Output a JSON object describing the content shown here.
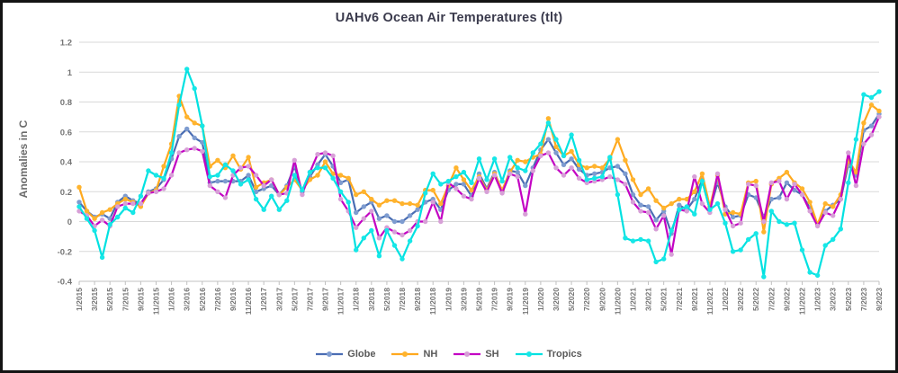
{
  "title": "UAHv6 Ocean Air Temperatures (tlt)",
  "y_axis_title": "Anomalies in C",
  "colors": {
    "background": "#ffffff",
    "frame_border": "#141414",
    "gridline": "#d9d9d9",
    "axis_line": "#c0c0c0",
    "tick_label": "#757575",
    "title_text": "#3b3b4d",
    "legend_text": "#595959"
  },
  "chart_data": {
    "type": "line",
    "title": "UAHv6 Ocean Air Temperatures (tlt)",
    "xlabel": "",
    "ylabel": "Anomalies in C",
    "ylim": [
      -0.4,
      1.2
    ],
    "ytick_step": 0.2,
    "ytick_labels": [
      "-0.4",
      "-0.2",
      "0",
      "0.2",
      "0.4",
      "0.6",
      "0.8",
      "1",
      "1.2"
    ],
    "grid": "horizontal",
    "legend_position": "bottom-center",
    "x_label_rotation": -90,
    "x_labels_shown_every": 2,
    "x": [
      "1/2015",
      "2/2015",
      "3/2015",
      "4/2015",
      "5/2015",
      "6/2015",
      "7/2015",
      "8/2015",
      "9/2015",
      "10/2015",
      "11/2015",
      "12/2015",
      "1/2016",
      "2/2016",
      "3/2016",
      "4/2016",
      "5/2016",
      "6/2016",
      "7/2016",
      "8/2016",
      "9/2016",
      "10/2016",
      "11/2016",
      "12/2016",
      "1/2017",
      "2/2017",
      "3/2017",
      "4/2017",
      "5/2017",
      "6/2017",
      "7/2017",
      "8/2017",
      "9/2017",
      "10/2017",
      "11/2017",
      "12/2017",
      "1/2018",
      "2/2018",
      "3/2018",
      "4/2018",
      "5/2018",
      "6/2018",
      "7/2018",
      "8/2018",
      "9/2018",
      "10/2018",
      "11/2018",
      "12/2018",
      "1/2019",
      "2/2019",
      "3/2019",
      "4/2019",
      "5/2019",
      "6/2019",
      "7/2019",
      "8/2019",
      "9/2019",
      "10/2019",
      "11/2019",
      "12/2019",
      "1/2020",
      "2/2020",
      "3/2020",
      "4/2020",
      "5/2020",
      "6/2020",
      "7/2020",
      "8/2020",
      "9/2020",
      "10/2020",
      "11/2020",
      "12/2020",
      "1/2021",
      "2/2021",
      "3/2021",
      "4/2021",
      "5/2021",
      "6/2021",
      "7/2021",
      "8/2021",
      "9/2021",
      "10/2021",
      "11/2021",
      "12/2021",
      "1/2022",
      "2/2022",
      "3/2022",
      "4/2022",
      "5/2022",
      "6/2022",
      "7/2022",
      "8/2022",
      "9/2022",
      "10/2022",
      "11/2022",
      "12/2022",
      "1/2023",
      "2/2023",
      "3/2023",
      "4/2023",
      "5/2023",
      "6/2023",
      "7/2023",
      "8/2023",
      "9/2023"
    ],
    "series": [
      {
        "name": "Globe",
        "color": "#4a6db3",
        "marker_color": "#7e9cd0",
        "values": [
          0.13,
          0.07,
          0.03,
          0.05,
          0.02,
          0.13,
          0.17,
          0.14,
          0.12,
          0.2,
          0.22,
          0.28,
          0.42,
          0.57,
          0.62,
          0.56,
          0.53,
          0.26,
          0.27,
          0.27,
          0.27,
          0.27,
          0.31,
          0.2,
          0.22,
          0.24,
          0.18,
          0.24,
          0.37,
          0.2,
          0.3,
          0.38,
          0.45,
          0.37,
          0.26,
          0.28,
          0.06,
          0.1,
          0.13,
          0.02,
          0.04,
          0.0,
          0.0,
          0.04,
          0.08,
          0.13,
          0.15,
          0.08,
          0.21,
          0.25,
          0.25,
          0.17,
          0.32,
          0.22,
          0.33,
          0.2,
          0.34,
          0.33,
          0.24,
          0.36,
          0.48,
          0.55,
          0.46,
          0.38,
          0.42,
          0.35,
          0.31,
          0.32,
          0.33,
          0.36,
          0.37,
          0.32,
          0.18,
          0.11,
          0.1,
          0.01,
          0.07,
          -0.08,
          0.11,
          0.08,
          0.15,
          0.28,
          0.08,
          0.26,
          0.1,
          0.03,
          0.04,
          0.18,
          0.16,
          0.03,
          0.15,
          0.16,
          0.26,
          0.21,
          0.18,
          0.09,
          -0.02,
          0.07,
          0.11,
          0.15,
          0.38,
          0.31,
          0.61,
          0.64,
          0.72
        ]
      },
      {
        "name": "NH",
        "color": "#ffa91e",
        "marker_color": "#ffb42e",
        "values": [
          0.23,
          0.07,
          0.02,
          0.06,
          0.08,
          0.12,
          0.15,
          0.13,
          0.1,
          0.19,
          0.21,
          0.37,
          0.52,
          0.84,
          0.7,
          0.66,
          0.64,
          0.37,
          0.41,
          0.36,
          0.44,
          0.35,
          0.43,
          0.23,
          0.26,
          0.28,
          0.18,
          0.23,
          0.28,
          0.21,
          0.28,
          0.31,
          0.4,
          0.32,
          0.31,
          0.29,
          0.18,
          0.2,
          0.15,
          0.11,
          0.14,
          0.14,
          0.12,
          0.12,
          0.11,
          0.21,
          0.21,
          0.12,
          0.24,
          0.36,
          0.28,
          0.21,
          0.3,
          0.21,
          0.32,
          0.21,
          0.33,
          0.41,
          0.4,
          0.43,
          0.45,
          0.69,
          0.5,
          0.44,
          0.47,
          0.38,
          0.36,
          0.37,
          0.36,
          0.42,
          0.55,
          0.41,
          0.28,
          0.18,
          0.22,
          0.14,
          0.09,
          0.12,
          0.15,
          0.15,
          0.2,
          0.32,
          0.1,
          0.31,
          0.05,
          0.06,
          0.05,
          0.26,
          0.27,
          -0.07,
          0.25,
          0.29,
          0.33,
          0.26,
          0.22,
          0.13,
          -0.02,
          0.12,
          0.1,
          0.18,
          0.41,
          0.33,
          0.66,
          0.78,
          0.74
        ]
      },
      {
        "name": "SH",
        "color": "#c303c3",
        "marker_color": "#d7a0d7",
        "values": [
          0.07,
          0.04,
          -0.03,
          0.01,
          -0.03,
          0.1,
          0.12,
          0.12,
          0.12,
          0.19,
          0.2,
          0.22,
          0.31,
          0.46,
          0.48,
          0.49,
          0.47,
          0.24,
          0.2,
          0.16,
          0.31,
          0.36,
          0.37,
          0.31,
          0.24,
          0.28,
          0.18,
          0.19,
          0.41,
          0.18,
          0.33,
          0.45,
          0.46,
          0.44,
          0.15,
          0.07,
          -0.04,
          0.02,
          0.07,
          -0.11,
          -0.04,
          -0.07,
          -0.09,
          -0.06,
          0.0,
          0.0,
          0.13,
          0.0,
          0.26,
          0.22,
          0.17,
          0.15,
          0.29,
          0.2,
          0.31,
          0.19,
          0.32,
          0.3,
          0.05,
          0.34,
          0.44,
          0.46,
          0.36,
          0.31,
          0.36,
          0.29,
          0.26,
          0.27,
          0.28,
          0.3,
          0.28,
          0.25,
          0.13,
          0.07,
          0.06,
          -0.05,
          0.04,
          -0.22,
          0.08,
          0.07,
          0.3,
          0.12,
          0.06,
          0.32,
          0.08,
          -0.03,
          -0.01,
          0.25,
          0.24,
          0.0,
          0.26,
          0.27,
          0.15,
          0.25,
          0.18,
          0.07,
          -0.03,
          0.06,
          0.04,
          0.15,
          0.46,
          0.24,
          0.52,
          0.58,
          0.7
        ]
      },
      {
        "name": "Tropics",
        "color": "#00e1e1",
        "marker_color": "#16e7e7",
        "values": [
          0.1,
          0.02,
          -0.06,
          -0.24,
          -0.02,
          0.03,
          0.09,
          0.06,
          0.17,
          0.34,
          0.31,
          0.29,
          0.46,
          0.78,
          1.02,
          0.89,
          0.64,
          0.3,
          0.31,
          0.38,
          0.34,
          0.25,
          0.28,
          0.15,
          0.08,
          0.17,
          0.08,
          0.14,
          0.31,
          0.21,
          0.33,
          0.36,
          0.36,
          0.29,
          0.2,
          0.13,
          -0.19,
          -0.11,
          -0.06,
          -0.23,
          -0.06,
          -0.16,
          -0.25,
          -0.13,
          -0.03,
          0.19,
          0.32,
          0.25,
          0.27,
          0.3,
          0.33,
          0.26,
          0.42,
          0.28,
          0.42,
          0.27,
          0.43,
          0.36,
          0.34,
          0.46,
          0.52,
          0.66,
          0.55,
          0.44,
          0.58,
          0.41,
          0.28,
          0.29,
          0.3,
          0.43,
          0.18,
          -0.11,
          -0.13,
          -0.12,
          -0.13,
          -0.27,
          -0.25,
          -0.06,
          0.08,
          0.1,
          0.05,
          0.27,
          0.08,
          0.12,
          -0.01,
          -0.2,
          -0.19,
          -0.12,
          -0.08,
          -0.37,
          0.07,
          0.0,
          -0.02,
          -0.01,
          -0.19,
          -0.34,
          -0.36,
          -0.16,
          -0.12,
          -0.05,
          0.26,
          0.55,
          0.85,
          0.83,
          0.87
        ]
      }
    ]
  }
}
